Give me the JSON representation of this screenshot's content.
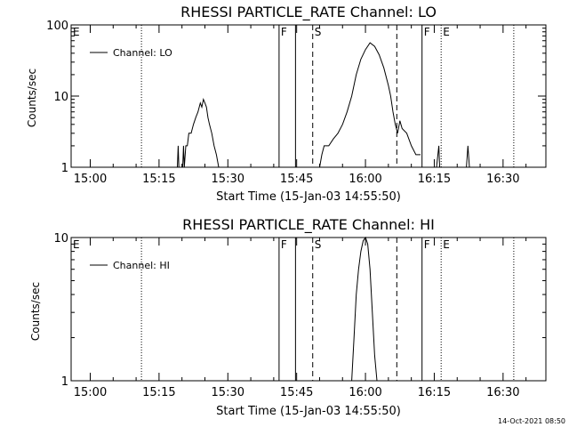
{
  "footer": {
    "timestamp": "14-Oct-2021 08:50"
  },
  "chart_data": [
    {
      "type": "line",
      "title": "RHESSI PARTICLE_RATE Channel: LO",
      "xlabel": "Start Time (15-Jan-03 14:55:50)",
      "ylabel": "Counts/sec",
      "y_scale": "log",
      "ylim": [
        1,
        100
      ],
      "y_ticks": [
        "1",
        "10",
        "100"
      ],
      "xlim_minutes_from_start": [
        0,
        103.5
      ],
      "x_ticks": [
        "15:00",
        "15:15",
        "15:30",
        "15:45",
        "16:00",
        "16:15",
        "16:30"
      ],
      "grid": false,
      "legend_position": "top-left",
      "legend": [
        "Channel: LO"
      ],
      "event_markers": [
        {
          "label": "E",
          "time": "14:55:50",
          "style": "none"
        },
        {
          "label": "",
          "time": "15:11:10",
          "style": "dotted"
        },
        {
          "label": "F",
          "time": "15:41:10",
          "style": "solid"
        },
        {
          "label": "",
          "time": "15:44:45",
          "style": "solid"
        },
        {
          "label": "S",
          "time": "15:48:30",
          "style": "dashed"
        },
        {
          "label": "",
          "time": "16:06:50",
          "style": "dashed"
        },
        {
          "label": "F",
          "time": "16:12:20",
          "style": "solid"
        },
        {
          "label": "E",
          "time": "16:16:30",
          "style": "dotted"
        },
        {
          "label": "",
          "time": "16:32:20",
          "style": "dotted"
        }
      ],
      "series": [
        {
          "name": "Channel: LO",
          "points": [
            [
              "15:19:00",
              1
            ],
            [
              "15:19:10",
              2
            ],
            [
              "15:19:20",
              1
            ],
            [
              "15:20:10",
              1
            ],
            [
              "15:20:20",
              2
            ],
            [
              "15:20:30",
              1
            ],
            [
              "15:20:50",
              2
            ],
            [
              "15:21:10",
              2
            ],
            [
              "15:21:30",
              3
            ],
            [
              "15:22:00",
              3
            ],
            [
              "15:22:30",
              4
            ],
            [
              "15:23:00",
              5
            ],
            [
              "15:23:30",
              6
            ],
            [
              "15:24:00",
              8
            ],
            [
              "15:24:20",
              7
            ],
            [
              "15:24:40",
              9
            ],
            [
              "15:25:00",
              8
            ],
            [
              "15:25:20",
              7
            ],
            [
              "15:25:40",
              5
            ],
            [
              "15:26:00",
              4
            ],
            [
              "15:26:30",
              3
            ],
            [
              "15:27:00",
              2
            ],
            [
              "15:27:30",
              1.5
            ],
            [
              "15:28:00",
              1
            ],
            [
              "15:50:00",
              1
            ],
            [
              "15:50:30",
              1.5
            ],
            [
              "15:51:00",
              2
            ],
            [
              "15:52:00",
              2
            ],
            [
              "15:53:00",
              2.5
            ],
            [
              "15:54:00",
              3
            ],
            [
              "15:55:00",
              4
            ],
            [
              "15:56:00",
              6
            ],
            [
              "15:57:00",
              10
            ],
            [
              "15:58:00",
              20
            ],
            [
              "15:59:00",
              33
            ],
            [
              "16:00:00",
              45
            ],
            [
              "16:01:00",
              56
            ],
            [
              "16:02:00",
              50
            ],
            [
              "16:03:00",
              38
            ],
            [
              "16:04:00",
              25
            ],
            [
              "16:05:00",
              14
            ],
            [
              "16:05:30",
              10
            ],
            [
              "16:06:00",
              6
            ],
            [
              "16:06:30",
              4
            ],
            [
              "16:07:00",
              3
            ],
            [
              "16:07:30",
              4.5
            ],
            [
              "16:08:00",
              3.5
            ],
            [
              "16:09:00",
              3
            ],
            [
              "16:10:00",
              2
            ],
            [
              "16:11:00",
              1.5
            ],
            [
              "16:12:00",
              1.5
            ],
            [
              "16:15:30",
              1
            ],
            [
              "16:16:00",
              2
            ],
            [
              "16:16:10",
              1
            ],
            [
              "16:22:00",
              1
            ],
            [
              "16:22:20",
              2
            ],
            [
              "16:22:40",
              1
            ]
          ]
        }
      ]
    },
    {
      "type": "line",
      "title": "RHESSI PARTICLE_RATE Channel: HI",
      "xlabel": "Start Time (15-Jan-03 14:55:50)",
      "ylabel": "Counts/sec",
      "y_scale": "log",
      "ylim": [
        1,
        10
      ],
      "y_ticks": [
        "1",
        "10"
      ],
      "xlim_minutes_from_start": [
        0,
        103.5
      ],
      "x_ticks": [
        "15:00",
        "15:15",
        "15:30",
        "15:45",
        "16:00",
        "16:15",
        "16:30"
      ],
      "grid": false,
      "legend_position": "top-left",
      "legend": [
        "Channel: HI"
      ],
      "event_markers": [
        {
          "label": "E",
          "time": "14:55:50",
          "style": "none"
        },
        {
          "label": "",
          "time": "15:11:10",
          "style": "dotted"
        },
        {
          "label": "F",
          "time": "15:41:10",
          "style": "solid"
        },
        {
          "label": "",
          "time": "15:44:45",
          "style": "solid"
        },
        {
          "label": "S",
          "time": "15:48:30",
          "style": "dashed"
        },
        {
          "label": "",
          "time": "16:06:50",
          "style": "dashed"
        },
        {
          "label": "F",
          "time": "16:12:20",
          "style": "solid"
        },
        {
          "label": "E",
          "time": "16:16:30",
          "style": "dotted"
        },
        {
          "label": "",
          "time": "16:32:20",
          "style": "dotted"
        }
      ],
      "series": [
        {
          "name": "Channel: HI",
          "points": [
            [
              "15:57:00",
              1
            ],
            [
              "15:57:30",
              2
            ],
            [
              "15:58:00",
              4
            ],
            [
              "15:58:30",
              6
            ],
            [
              "15:59:00",
              8
            ],
            [
              "15:59:30",
              9.5
            ],
            [
              "16:00:00",
              10
            ],
            [
              "16:00:30",
              9
            ],
            [
              "16:01:00",
              6
            ],
            [
              "16:01:30",
              3
            ],
            [
              "16:02:00",
              1.5
            ],
            [
              "16:02:30",
              1
            ]
          ]
        }
      ]
    }
  ]
}
